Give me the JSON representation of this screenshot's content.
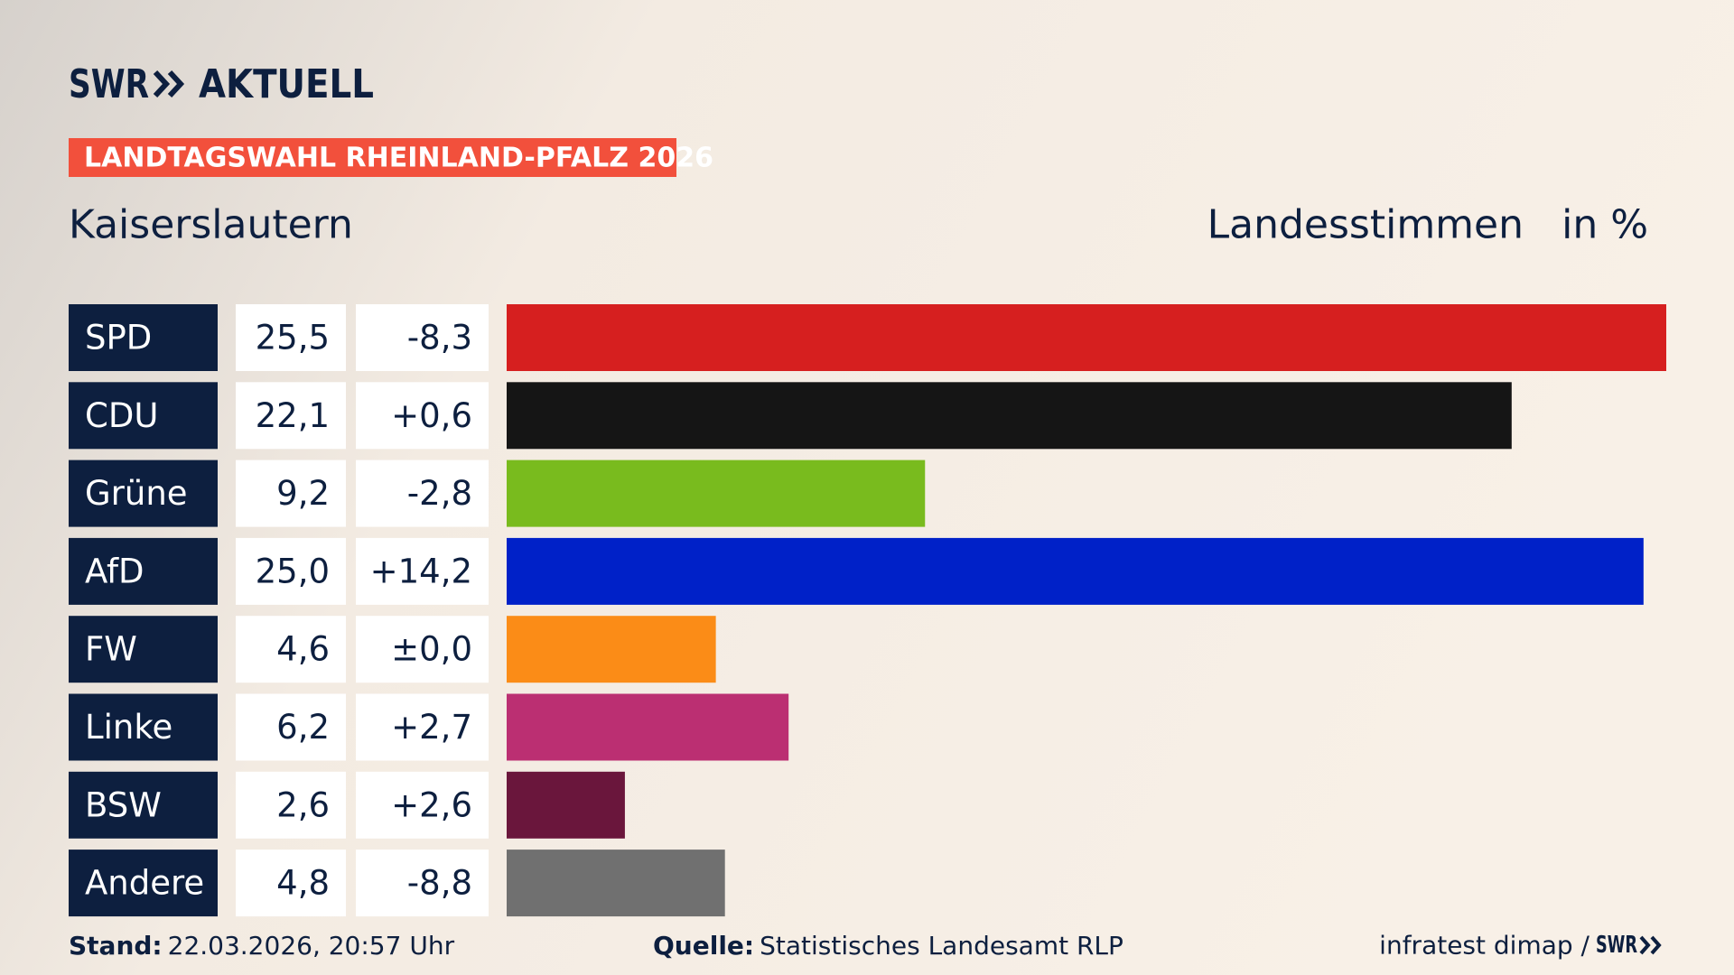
{
  "logo": {
    "brand": "SWR",
    "product": "AKTUELL"
  },
  "banner": "LANDTAGSWAHL RHEINLAND-PFALZ 2026",
  "chart_data": {
    "type": "bar",
    "subtitle": "Kaiserslautern",
    "measure": "Landesstimmen",
    "unit": "in %",
    "categories": [
      "SPD",
      "CDU",
      "Grüne",
      "AfD",
      "FW",
      "Linke",
      "BSW",
      "Andere"
    ],
    "values": [
      25.5,
      22.1,
      9.2,
      25.0,
      4.6,
      6.2,
      2.6,
      4.8
    ],
    "value_labels": [
      "25,5",
      "22,1",
      "9,2",
      "25,0",
      "4,6",
      "6,2",
      "2,6",
      "4,8"
    ],
    "changes": [
      -8.3,
      0.6,
      -2.8,
      14.2,
      0.0,
      2.7,
      2.6,
      -8.8
    ],
    "change_labels": [
      "-8,3",
      "+0,6",
      "-2,8",
      "+14,2",
      "±0,0",
      "+2,7",
      "+2,6",
      "-8,8"
    ],
    "colors": [
      "#d61f1f",
      "#151515",
      "#79bb1e",
      "#0021c8",
      "#fb8c17",
      "#bb2f72",
      "#6a163c",
      "#707070"
    ]
  },
  "footer": {
    "stand_label": "Stand:",
    "stand": "22.03.2026, 20:57 Uhr",
    "source_label": "Quelle:",
    "source": "Statistisches Landesamt RLP",
    "credit": "infratest dimap /",
    "credit_logo": "SWR"
  }
}
